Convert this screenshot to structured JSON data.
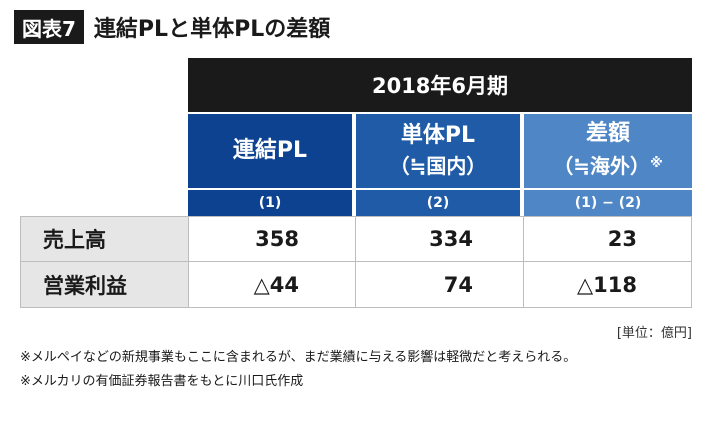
{
  "header": {
    "badge": "図表7",
    "title": "連結PLと単体PLの差額"
  },
  "table": {
    "period": "2018年6月期",
    "columns": [
      {
        "main": "連結PL",
        "sub": "",
        "note": "",
        "num": "(1)"
      },
      {
        "main": "単体PL",
        "sub": "（≒国内）",
        "note": "",
        "num": "(2)"
      },
      {
        "main": "差額",
        "sub": "（≒海外）",
        "note": "※",
        "num": "(1) − (2)"
      }
    ],
    "rows": [
      {
        "label": "売上高",
        "values": [
          "358",
          "334",
          "23"
        ]
      },
      {
        "label": "営業利益",
        "values": [
          "△44",
          "74",
          "△118"
        ]
      }
    ]
  },
  "unit": "[単位：億円]",
  "notes": [
    "※メルペイなどの新規事業もここに含まれるが、まだ業績に与える影響は軽微だと考えられる。",
    "※メルカリの有価証券報告書をもとに川口氏作成"
  ],
  "colors": {
    "dark": "#1a1a1a",
    "col1": "#0d4290",
    "col2": "#1f5ba7",
    "col3": "#4f86c6",
    "label_bg": "#e6e6e6"
  }
}
